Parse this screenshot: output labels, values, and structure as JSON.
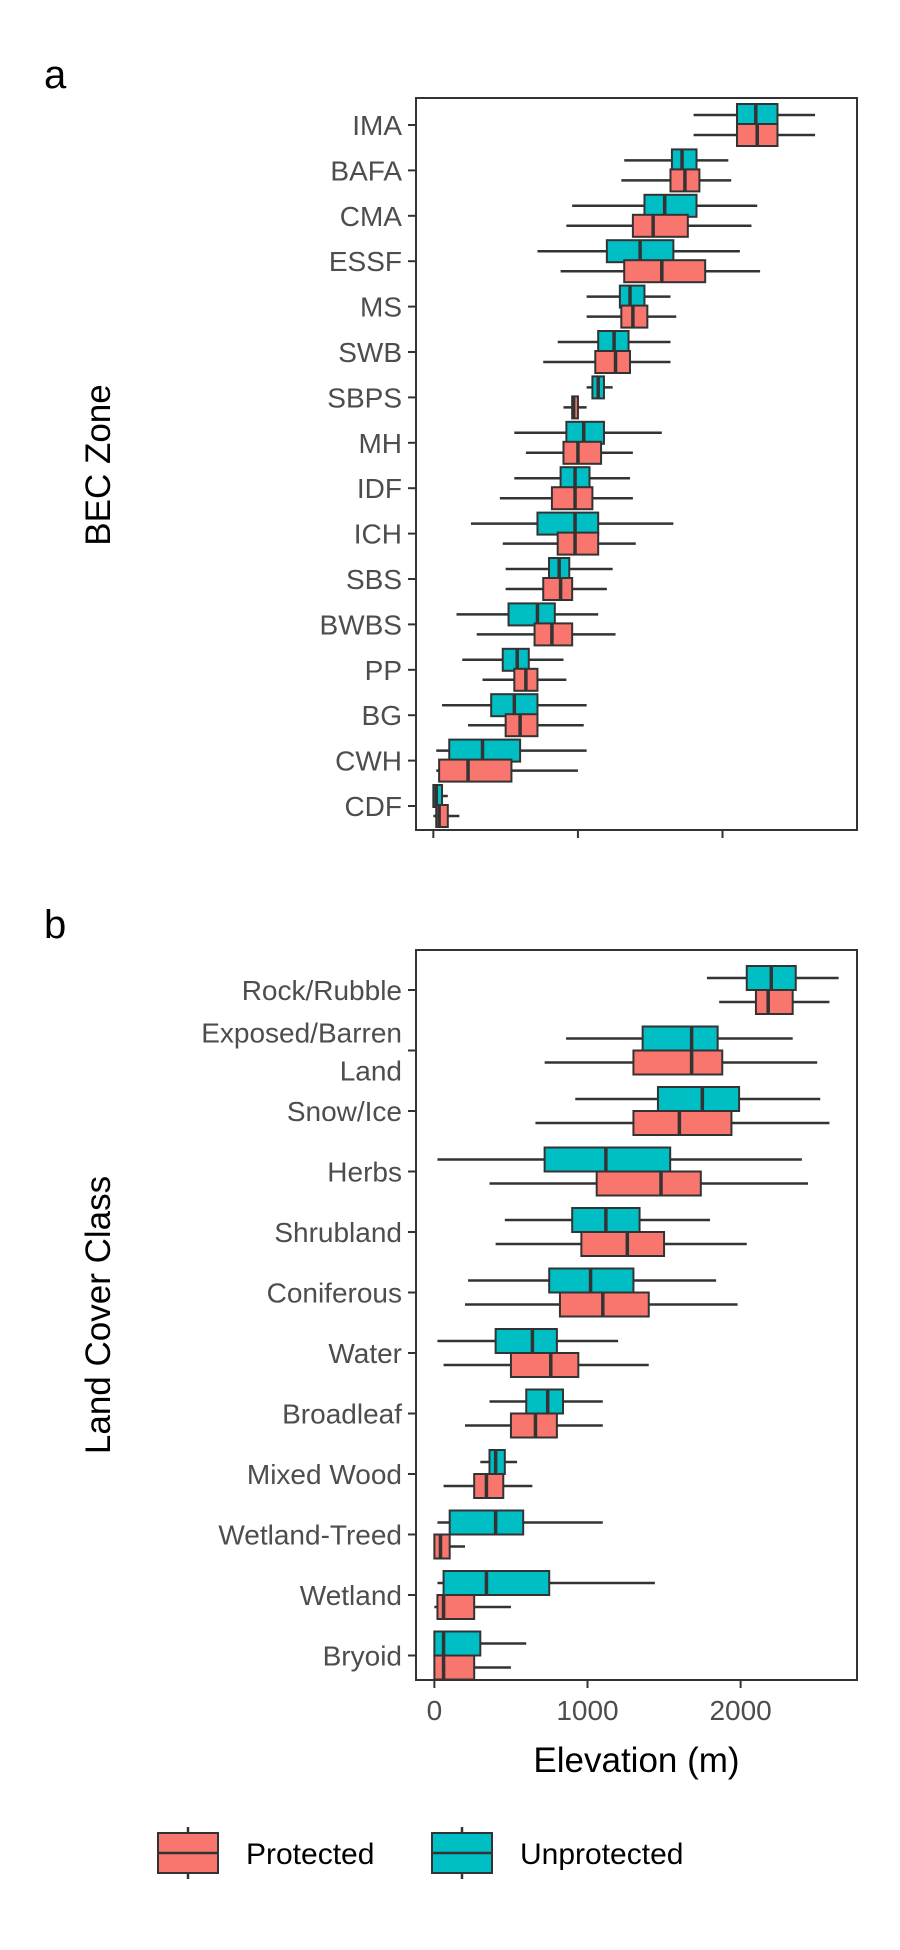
{
  "colors": {
    "protected": "#F8766D",
    "unprotected": "#00BFC4",
    "outline": "#333333",
    "panel_border": "#333333",
    "tick_text": "#4d4d4d"
  },
  "chart_data": [
    {
      "type": "boxplot",
      "panel_tag": "a",
      "orientation": "horizontal",
      "ylabel": "BEC Zone",
      "xlabel": "",
      "xlim": [
        -120,
        2930
      ],
      "xticks": [
        0,
        1000,
        2000
      ],
      "show_x_tick_labels": false,
      "grid": false,
      "categories": [
        "IMA",
        "BAFA",
        "CMA",
        "ESSF",
        "MS",
        "SWB",
        "SBPS",
        "MH",
        "IDF",
        "ICH",
        "SBS",
        "BWBS",
        "PP",
        "BG",
        "CWH",
        "CDF"
      ],
      "series": [
        {
          "name": "Unprotected",
          "boxes": [
            {
              "min": 1800,
              "q1": 2100,
              "median": 2230,
              "q3": 2380,
              "max": 2640
            },
            {
              "min": 1320,
              "q1": 1650,
              "median": 1720,
              "q3": 1820,
              "max": 2040
            },
            {
              "min": 960,
              "q1": 1460,
              "median": 1600,
              "q3": 1820,
              "max": 2240
            },
            {
              "min": 720,
              "q1": 1200,
              "median": 1430,
              "q3": 1660,
              "max": 2120
            },
            {
              "min": 1060,
              "q1": 1290,
              "median": 1360,
              "q3": 1460,
              "max": 1640
            },
            {
              "min": 860,
              "q1": 1140,
              "median": 1250,
              "q3": 1350,
              "max": 1640
            },
            {
              "min": 1060,
              "q1": 1100,
              "median": 1140,
              "q3": 1180,
              "max": 1240
            },
            {
              "min": 560,
              "q1": 920,
              "median": 1040,
              "q3": 1180,
              "max": 1580
            },
            {
              "min": 560,
              "q1": 880,
              "median": 980,
              "q3": 1080,
              "max": 1360
            },
            {
              "min": 260,
              "q1": 720,
              "median": 980,
              "q3": 1140,
              "max": 1660
            },
            {
              "min": 500,
              "q1": 800,
              "median": 870,
              "q3": 940,
              "max": 1240
            },
            {
              "min": 160,
              "q1": 520,
              "median": 720,
              "q3": 840,
              "max": 1140
            },
            {
              "min": 200,
              "q1": 480,
              "median": 580,
              "q3": 660,
              "max": 900
            },
            {
              "min": 60,
              "q1": 400,
              "median": 560,
              "q3": 720,
              "max": 1060
            },
            {
              "min": 20,
              "q1": 110,
              "median": 340,
              "q3": 600,
              "max": 1060
            },
            {
              "min": 0,
              "q1": 0,
              "median": 20,
              "q3": 60,
              "max": 100
            }
          ]
        },
        {
          "name": "Protected",
          "boxes": [
            {
              "min": 1800,
              "q1": 2100,
              "median": 2240,
              "q3": 2380,
              "max": 2640
            },
            {
              "min": 1300,
              "q1": 1640,
              "median": 1740,
              "q3": 1840,
              "max": 2060
            },
            {
              "min": 920,
              "q1": 1380,
              "median": 1520,
              "q3": 1760,
              "max": 2200
            },
            {
              "min": 880,
              "q1": 1320,
              "median": 1580,
              "q3": 1880,
              "max": 2260
            },
            {
              "min": 1060,
              "q1": 1300,
              "median": 1380,
              "q3": 1480,
              "max": 1680
            },
            {
              "min": 760,
              "q1": 1120,
              "median": 1260,
              "q3": 1360,
              "max": 1640
            },
            {
              "min": 900,
              "q1": 960,
              "median": 970,
              "q3": 1000,
              "max": 1060
            },
            {
              "min": 640,
              "q1": 900,
              "median": 1000,
              "q3": 1160,
              "max": 1380
            },
            {
              "min": 460,
              "q1": 820,
              "median": 980,
              "q3": 1100,
              "max": 1380
            },
            {
              "min": 480,
              "q1": 860,
              "median": 980,
              "q3": 1140,
              "max": 1400
            },
            {
              "min": 500,
              "q1": 760,
              "median": 880,
              "q3": 960,
              "max": 1200
            },
            {
              "min": 300,
              "q1": 700,
              "median": 820,
              "q3": 960,
              "max": 1260
            },
            {
              "min": 340,
              "q1": 560,
              "median": 640,
              "q3": 720,
              "max": 920
            },
            {
              "min": 240,
              "q1": 500,
              "median": 600,
              "q3": 720,
              "max": 1040
            },
            {
              "min": 20,
              "q1": 40,
              "median": 240,
              "q3": 540,
              "max": 1000
            },
            {
              "min": 0,
              "q1": 20,
              "median": 40,
              "q3": 100,
              "max": 180
            }
          ]
        }
      ]
    },
    {
      "type": "boxplot",
      "panel_tag": "b",
      "orientation": "horizontal",
      "ylabel": "Land Cover Class",
      "xlabel": "Elevation (m)",
      "xlim": [
        -120,
        2760
      ],
      "xticks": [
        0,
        1000,
        2000
      ],
      "xtick_labels": [
        "0",
        "1000",
        "2000"
      ],
      "show_x_tick_labels": true,
      "grid": false,
      "categories": [
        "Rock/Rubble",
        "Exposed/Barren Land",
        "Snow/Ice",
        "Herbs",
        "Shrubland",
        "Coniferous",
        "Water",
        "Broadleaf",
        "Mixed Wood",
        "Wetland-Treed",
        "Wetland",
        "Bryoid"
      ],
      "category_labels": [
        [
          "Rock/Rubble"
        ],
        [
          "Exposed/Barren",
          "Land"
        ],
        [
          "Snow/Ice"
        ],
        [
          "Herbs"
        ],
        [
          "Shrubland"
        ],
        [
          "Coniferous"
        ],
        [
          "Water"
        ],
        [
          "Broadleaf"
        ],
        [
          "Mixed Wood"
        ],
        [
          "Wetland-Treed"
        ],
        [
          "Wetland"
        ],
        [
          "Bryoid"
        ]
      ],
      "series": [
        {
          "name": "Unprotected",
          "boxes": [
            {
              "min": 1780,
              "q1": 2040,
              "median": 2200,
              "q3": 2360,
              "max": 2640
            },
            {
              "min": 860,
              "q1": 1360,
              "median": 1680,
              "q3": 1850,
              "max": 2340
            },
            {
              "min": 920,
              "q1": 1460,
              "median": 1750,
              "q3": 1990,
              "max": 2520
            },
            {
              "min": 20,
              "q1": 720,
              "median": 1120,
              "q3": 1540,
              "max": 2400
            },
            {
              "min": 460,
              "q1": 900,
              "median": 1120,
              "q3": 1340,
              "max": 1800
            },
            {
              "min": 220,
              "q1": 750,
              "median": 1020,
              "q3": 1300,
              "max": 1840
            },
            {
              "min": 20,
              "q1": 400,
              "median": 640,
              "q3": 800,
              "max": 1200
            },
            {
              "min": 360,
              "q1": 600,
              "median": 740,
              "q3": 840,
              "max": 1100
            },
            {
              "min": 300,
              "q1": 360,
              "median": 400,
              "q3": 460,
              "max": 540
            },
            {
              "min": 20,
              "q1": 100,
              "median": 400,
              "q3": 580,
              "max": 1100
            },
            {
              "min": 20,
              "q1": 60,
              "median": 340,
              "q3": 750,
              "max": 1440
            },
            {
              "min": 0,
              "q1": 0,
              "median": 60,
              "q3": 300,
              "max": 600
            }
          ]
        },
        {
          "name": "Protected",
          "boxes": [
            {
              "min": 1860,
              "q1": 2100,
              "median": 2180,
              "q3": 2340,
              "max": 2580
            },
            {
              "min": 720,
              "q1": 1300,
              "median": 1680,
              "q3": 1880,
              "max": 2500
            },
            {
              "min": 660,
              "q1": 1300,
              "median": 1600,
              "q3": 1940,
              "max": 2580
            },
            {
              "min": 360,
              "q1": 1060,
              "median": 1480,
              "q3": 1740,
              "max": 2440
            },
            {
              "min": 400,
              "q1": 960,
              "median": 1260,
              "q3": 1500,
              "max": 2040
            },
            {
              "min": 200,
              "q1": 820,
              "median": 1100,
              "q3": 1400,
              "max": 1980
            },
            {
              "min": 60,
              "q1": 500,
              "median": 760,
              "q3": 940,
              "max": 1400
            },
            {
              "min": 200,
              "q1": 500,
              "median": 660,
              "q3": 800,
              "max": 1100
            },
            {
              "min": 60,
              "q1": 260,
              "median": 340,
              "q3": 450,
              "max": 640
            },
            {
              "min": 0,
              "q1": 0,
              "median": 40,
              "q3": 100,
              "max": 200
            },
            {
              "min": 0,
              "q1": 20,
              "median": 60,
              "q3": 260,
              "max": 500
            },
            {
              "min": 0,
              "q1": 0,
              "median": 60,
              "q3": 260,
              "max": 500
            }
          ]
        }
      ]
    }
  ],
  "legend": {
    "position": "bottom",
    "items": [
      "Protected",
      "Unprotected"
    ]
  }
}
